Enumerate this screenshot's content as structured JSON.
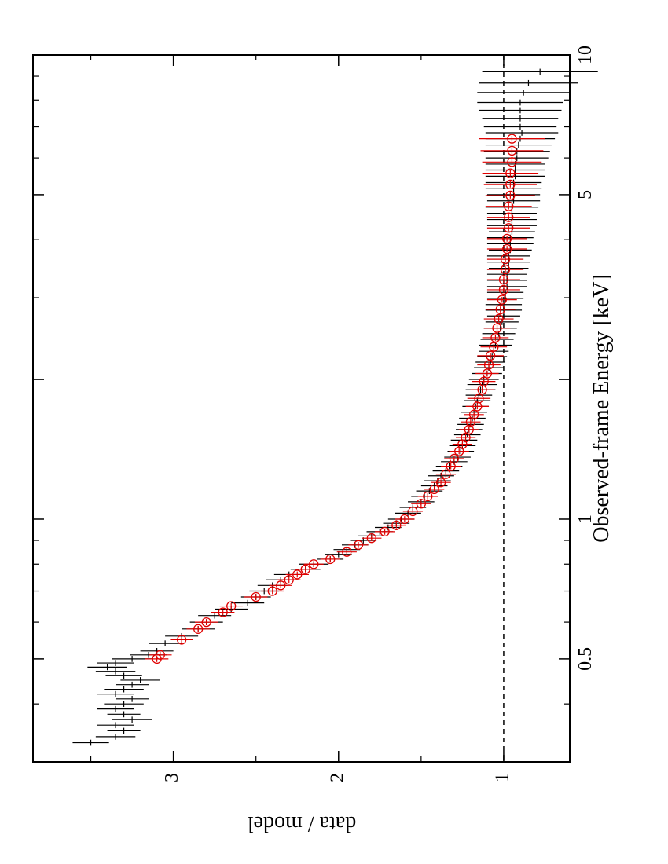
{
  "chart_data": {
    "type": "scatter",
    "orientation": "rotated-90",
    "title": "",
    "xlabel": "Observed-frame Energy [keV]",
    "ylabel": "data / model",
    "xscale": "log",
    "xlim": [
      0.3,
      10
    ],
    "ylim": [
      0.6,
      3.85
    ],
    "x_ticks": [
      {
        "value": 0.5,
        "label": "0.5"
      },
      {
        "value": 1,
        "label": "1"
      },
      {
        "value": 2,
        "label": ""
      },
      {
        "value": 5,
        "label": "5"
      },
      {
        "value": 10,
        "label": "10"
      }
    ],
    "y_ticks": [
      {
        "value": 1,
        "label": "1"
      },
      {
        "value": 2,
        "label": "2"
      },
      {
        "value": 3,
        "label": "3"
      }
    ],
    "reference_line": {
      "y": 1.0,
      "style": "dashed"
    },
    "grid": false,
    "colors": {
      "series_1": "#000000",
      "series_2": "#e00000",
      "axes": "#000000"
    },
    "series": [
      {
        "marker": "none",
        "color": "#000000",
        "points": [
          [
            0.33,
            3.5,
            0.11
          ],
          [
            0.34,
            3.35,
            0.12
          ],
          [
            0.35,
            3.3,
            0.1
          ],
          [
            0.36,
            3.35,
            0.11
          ],
          [
            0.37,
            3.25,
            0.12
          ],
          [
            0.38,
            3.3,
            0.1
          ],
          [
            0.39,
            3.35,
            0.11
          ],
          [
            0.4,
            3.3,
            0.12
          ],
          [
            0.41,
            3.25,
            0.1
          ],
          [
            0.42,
            3.35,
            0.11
          ],
          [
            0.43,
            3.3,
            0.12
          ],
          [
            0.44,
            3.25,
            0.1
          ],
          [
            0.45,
            3.2,
            0.12
          ],
          [
            0.46,
            3.3,
            0.11
          ],
          [
            0.47,
            3.35,
            0.12
          ],
          [
            0.48,
            3.4,
            0.12
          ],
          [
            0.49,
            3.35,
            0.11
          ],
          [
            0.5,
            3.25,
            0.12
          ],
          [
            0.51,
            3.15,
            0.11
          ],
          [
            0.52,
            3.1,
            0.1
          ],
          [
            0.54,
            3.05,
            0.1
          ],
          [
            0.56,
            2.95,
            0.1
          ],
          [
            0.58,
            2.85,
            0.1
          ],
          [
            0.6,
            2.8,
            0.1
          ],
          [
            0.62,
            2.75,
            0.1
          ],
          [
            0.64,
            2.65,
            0.1
          ],
          [
            0.66,
            2.55,
            0.1
          ],
          [
            0.68,
            2.5,
            0.09
          ],
          [
            0.7,
            2.45,
            0.09
          ],
          [
            0.72,
            2.4,
            0.09
          ],
          [
            0.74,
            2.35,
            0.09
          ],
          [
            0.76,
            2.3,
            0.09
          ],
          [
            0.78,
            2.2,
            0.09
          ],
          [
            0.8,
            2.15,
            0.09
          ],
          [
            0.82,
            2.05,
            0.08
          ],
          [
            0.84,
            2.0,
            0.08
          ],
          [
            0.86,
            1.95,
            0.08
          ],
          [
            0.88,
            1.9,
            0.08
          ],
          [
            0.9,
            1.85,
            0.08
          ],
          [
            0.92,
            1.8,
            0.08
          ],
          [
            0.94,
            1.75,
            0.08
          ],
          [
            0.96,
            1.7,
            0.08
          ],
          [
            0.98,
            1.65,
            0.08
          ],
          [
            1.0,
            1.62,
            0.08
          ],
          [
            1.03,
            1.58,
            0.08
          ],
          [
            1.06,
            1.55,
            0.08
          ],
          [
            1.09,
            1.5,
            0.08
          ],
          [
            1.12,
            1.48,
            0.08
          ],
          [
            1.15,
            1.45,
            0.08
          ],
          [
            1.18,
            1.42,
            0.08
          ],
          [
            1.21,
            1.4,
            0.08
          ],
          [
            1.24,
            1.38,
            0.08
          ],
          [
            1.27,
            1.35,
            0.08
          ],
          [
            1.3,
            1.33,
            0.08
          ],
          [
            1.33,
            1.3,
            0.08
          ],
          [
            1.36,
            1.28,
            0.08
          ],
          [
            1.4,
            1.26,
            0.08
          ],
          [
            1.44,
            1.25,
            0.08
          ],
          [
            1.48,
            1.24,
            0.08
          ],
          [
            1.52,
            1.22,
            0.08
          ],
          [
            1.56,
            1.21,
            0.08
          ],
          [
            1.6,
            1.2,
            0.08
          ],
          [
            1.65,
            1.19,
            0.08
          ],
          [
            1.7,
            1.18,
            0.08
          ],
          [
            1.75,
            1.17,
            0.08
          ],
          [
            1.8,
            1.16,
            0.08
          ],
          [
            1.85,
            1.15,
            0.08
          ],
          [
            1.9,
            1.14,
            0.09
          ],
          [
            1.95,
            1.13,
            0.09
          ],
          [
            2.0,
            1.12,
            0.09
          ],
          [
            2.06,
            1.1,
            0.09
          ],
          [
            2.12,
            1.09,
            0.09
          ],
          [
            2.18,
            1.08,
            0.09
          ],
          [
            2.24,
            1.07,
            0.09
          ],
          [
            2.3,
            1.06,
            0.09
          ],
          [
            2.37,
            1.05,
            0.1
          ],
          [
            2.44,
            1.04,
            0.1
          ],
          [
            2.51,
            1.03,
            0.1
          ],
          [
            2.58,
            1.02,
            0.1
          ],
          [
            2.66,
            1.01,
            0.1
          ],
          [
            2.74,
            1.0,
            0.1
          ],
          [
            2.82,
            1.0,
            0.11
          ],
          [
            2.9,
            1.0,
            0.11
          ],
          [
            2.99,
            0.99,
            0.11
          ],
          [
            3.08,
            0.99,
            0.11
          ],
          [
            3.17,
            0.98,
            0.12
          ],
          [
            3.27,
            0.98,
            0.12
          ],
          [
            3.37,
            0.98,
            0.12
          ],
          [
            3.47,
            0.97,
            0.12
          ],
          [
            3.58,
            0.97,
            0.13
          ],
          [
            3.69,
            0.97,
            0.13
          ],
          [
            3.8,
            0.96,
            0.13
          ],
          [
            3.92,
            0.96,
            0.14
          ],
          [
            4.04,
            0.96,
            0.14
          ],
          [
            4.16,
            0.95,
            0.14
          ],
          [
            4.29,
            0.95,
            0.15
          ],
          [
            4.42,
            0.95,
            0.15
          ],
          [
            4.56,
            0.95,
            0.15
          ],
          [
            4.7,
            0.95,
            0.16
          ],
          [
            4.85,
            0.94,
            0.16
          ],
          [
            5.0,
            0.94,
            0.16
          ],
          [
            5.15,
            0.94,
            0.17
          ],
          [
            5.31,
            0.94,
            0.17
          ],
          [
            5.48,
            0.93,
            0.18
          ],
          [
            5.65,
            0.93,
            0.18
          ],
          [
            5.82,
            0.93,
            0.18
          ],
          [
            6.0,
            0.92,
            0.19
          ],
          [
            6.2,
            0.92,
            0.2
          ],
          [
            6.4,
            0.91,
            0.2
          ],
          [
            6.6,
            0.9,
            0.21
          ],
          [
            6.8,
            0.89,
            0.22
          ],
          [
            7.0,
            0.9,
            0.22
          ],
          [
            7.3,
            0.9,
            0.23
          ],
          [
            7.6,
            0.9,
            0.25
          ],
          [
            7.9,
            0.9,
            0.26
          ],
          [
            8.3,
            0.88,
            0.28
          ],
          [
            8.7,
            0.85,
            0.3
          ],
          [
            9.2,
            0.78,
            0.35
          ]
        ]
      },
      {
        "marker": "open-circle",
        "color": "#e00000",
        "points": [
          [
            0.5,
            3.1,
            0.07
          ],
          [
            0.51,
            3.08,
            0.07
          ],
          [
            0.55,
            2.95,
            0.07
          ],
          [
            0.58,
            2.85,
            0.07
          ],
          [
            0.6,
            2.8,
            0.07
          ],
          [
            0.63,
            2.7,
            0.07
          ],
          [
            0.65,
            2.65,
            0.07
          ],
          [
            0.68,
            2.5,
            0.07
          ],
          [
            0.7,
            2.4,
            0.07
          ],
          [
            0.72,
            2.35,
            0.07
          ],
          [
            0.74,
            2.3,
            0.07
          ],
          [
            0.76,
            2.25,
            0.07
          ],
          [
            0.78,
            2.2,
            0.06
          ],
          [
            0.8,
            2.15,
            0.06
          ],
          [
            0.82,
            2.05,
            0.06
          ],
          [
            0.85,
            1.95,
            0.06
          ],
          [
            0.88,
            1.88,
            0.06
          ],
          [
            0.91,
            1.8,
            0.06
          ],
          [
            0.94,
            1.72,
            0.06
          ],
          [
            0.97,
            1.65,
            0.06
          ],
          [
            1.0,
            1.6,
            0.06
          ],
          [
            1.04,
            1.55,
            0.06
          ],
          [
            1.08,
            1.5,
            0.06
          ],
          [
            1.12,
            1.46,
            0.06
          ],
          [
            1.16,
            1.42,
            0.06
          ],
          [
            1.2,
            1.38,
            0.06
          ],
          [
            1.25,
            1.35,
            0.06
          ],
          [
            1.3,
            1.32,
            0.06
          ],
          [
            1.35,
            1.3,
            0.06
          ],
          [
            1.4,
            1.27,
            0.06
          ],
          [
            1.45,
            1.25,
            0.06
          ],
          [
            1.5,
            1.23,
            0.06
          ],
          [
            1.56,
            1.21,
            0.06
          ],
          [
            1.62,
            1.2,
            0.06
          ],
          [
            1.68,
            1.18,
            0.06
          ],
          [
            1.75,
            1.16,
            0.07
          ],
          [
            1.82,
            1.15,
            0.07
          ],
          [
            1.9,
            1.13,
            0.07
          ],
          [
            1.98,
            1.12,
            0.07
          ],
          [
            2.06,
            1.1,
            0.07
          ],
          [
            2.15,
            1.09,
            0.07
          ],
          [
            2.25,
            1.08,
            0.08
          ],
          [
            2.35,
            1.06,
            0.08
          ],
          [
            2.46,
            1.05,
            0.08
          ],
          [
            2.58,
            1.04,
            0.08
          ],
          [
            2.7,
            1.03,
            0.09
          ],
          [
            2.83,
            1.02,
            0.09
          ],
          [
            2.97,
            1.01,
            0.09
          ],
          [
            3.12,
            1.0,
            0.1
          ],
          [
            3.28,
            1.0,
            0.1
          ],
          [
            3.45,
            0.99,
            0.11
          ],
          [
            3.63,
            0.99,
            0.11
          ],
          [
            3.82,
            0.98,
            0.12
          ],
          [
            4.02,
            0.98,
            0.12
          ],
          [
            4.24,
            0.97,
            0.13
          ],
          [
            4.47,
            0.97,
            0.13
          ],
          [
            4.72,
            0.97,
            0.14
          ],
          [
            4.98,
            0.96,
            0.15
          ],
          [
            5.26,
            0.96,
            0.16
          ],
          [
            5.56,
            0.96,
            0.17
          ],
          [
            5.88,
            0.95,
            0.18
          ],
          [
            6.22,
            0.95,
            0.19
          ],
          [
            6.6,
            0.95,
            0.2
          ]
        ]
      }
    ]
  }
}
